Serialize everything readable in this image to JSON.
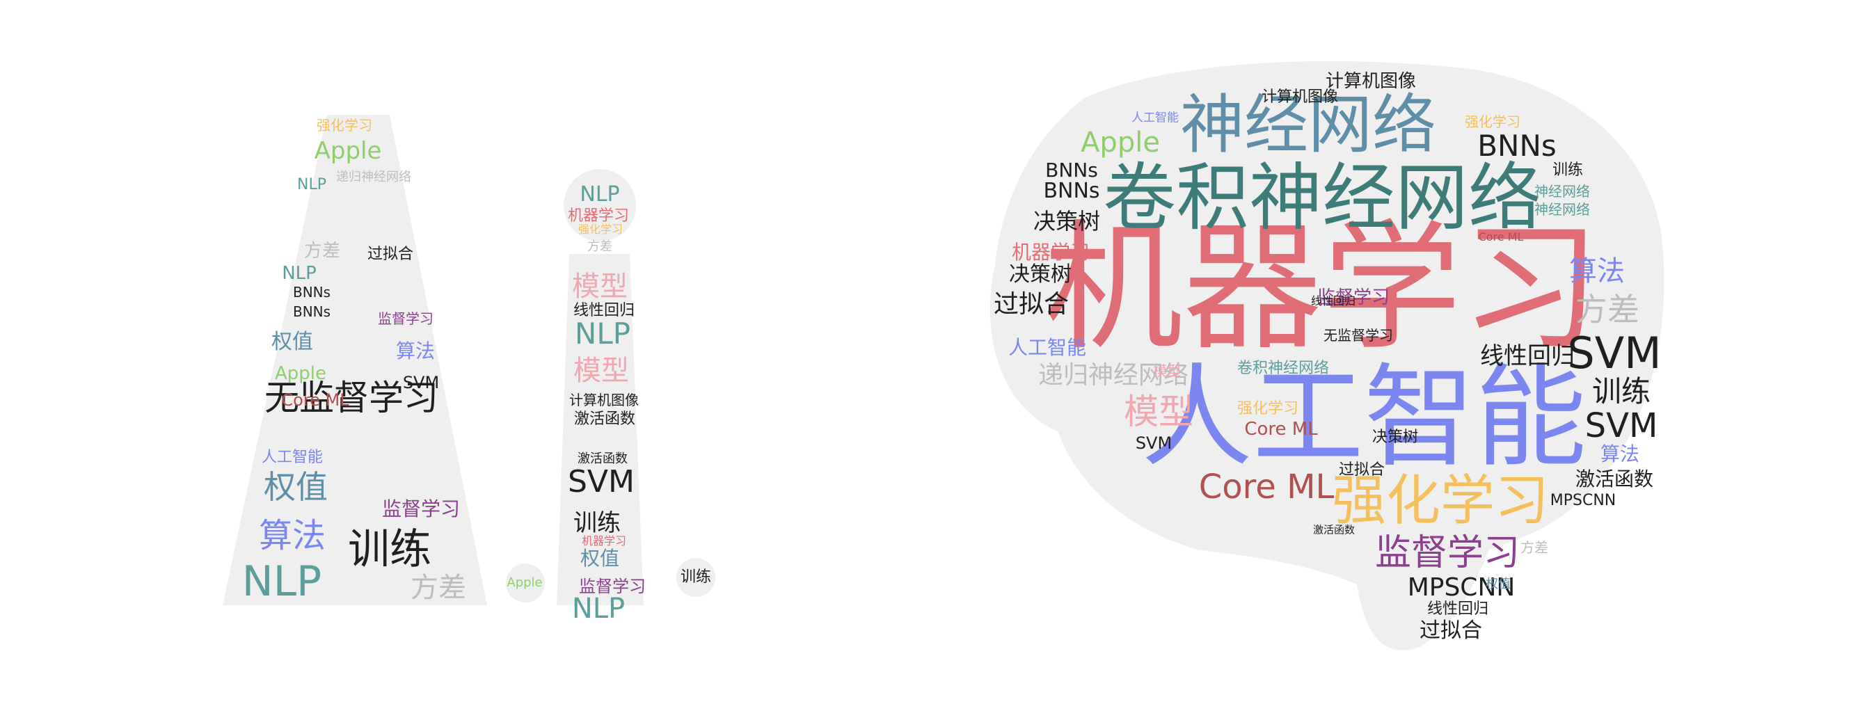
{
  "palette": {
    "red": "#e06c75",
    "teal": "#5b9e9a",
    "blue": "#7b86f0",
    "darkteal": "#3d7c78",
    "orange": "#f5bf5c",
    "purple": "#8b3f8e",
    "dark": "#1f1f1f",
    "gray": "#bdbdbd",
    "green": "#8fcf6b",
    "pink": "#f0a7b0",
    "maroon": "#b05050",
    "slate": "#5f8fa8",
    "shape_fill": "#efefef"
  },
  "words": [
    {
      "t": "机器学习",
      "c": "red"
    },
    {
      "t": "人工智能",
      "c": "blue"
    },
    {
      "t": "卷积神经网络",
      "c": "darkteal"
    },
    {
      "t": "神经网络",
      "c": "slate"
    },
    {
      "t": "强化学习",
      "c": "orange"
    },
    {
      "t": "监督学习",
      "c": "purple"
    },
    {
      "t": "Core ML",
      "c": "maroon"
    },
    {
      "t": "SVM",
      "c": "dark"
    },
    {
      "t": "SVM",
      "c": "dark"
    },
    {
      "t": "训练",
      "c": "dark"
    },
    {
      "t": "MPSCNN",
      "c": "dark"
    },
    {
      "t": "激活函数",
      "c": "dark"
    },
    {
      "t": "BNNs",
      "c": "dark"
    },
    {
      "t": "BNNs",
      "c": "dark"
    },
    {
      "t": "BNNs",
      "c": "dark"
    },
    {
      "t": "Apple",
      "c": "green"
    },
    {
      "t": "决策树",
      "c": "dark"
    },
    {
      "t": "决策树",
      "c": "dark"
    },
    {
      "t": "过拟合",
      "c": "dark"
    },
    {
      "t": "过拟合",
      "c": "dark"
    },
    {
      "t": "线性回归",
      "c": "dark"
    },
    {
      "t": "线性回归",
      "c": "dark"
    },
    {
      "t": "算法",
      "c": "blue"
    },
    {
      "t": "算法",
      "c": "blue"
    },
    {
      "t": "方差",
      "c": "gray"
    },
    {
      "t": "方差",
      "c": "gray"
    },
    {
      "t": "机器学习",
      "c": "red"
    },
    {
      "t": "人工智能",
      "c": "blue"
    },
    {
      "t": "递归神经网络",
      "c": "gray"
    },
    {
      "t": "模型",
      "c": "pink"
    },
    {
      "t": "模型",
      "c": "pink"
    },
    {
      "t": "计算机图像",
      "c": "dark"
    },
    {
      "t": "计算机图像",
      "c": "dark"
    },
    {
      "t": "卷积神经网络",
      "c": "teal"
    },
    {
      "t": "神经网络",
      "c": "teal"
    },
    {
      "t": "神经网络",
      "c": "teal"
    },
    {
      "t": "强化学习",
      "c": "orange"
    },
    {
      "t": "强化学习",
      "c": "orange"
    },
    {
      "t": "Core ML",
      "c": "maroon"
    },
    {
      "t": "Core ML",
      "c": "maroon"
    },
    {
      "t": "无监督学习",
      "c": "dark"
    },
    {
      "t": "监督学习",
      "c": "purple"
    },
    {
      "t": "过拟合",
      "c": "dark"
    },
    {
      "t": "线性回归",
      "c": "dark"
    },
    {
      "t": "MPSCNN",
      "c": "dark"
    },
    {
      "t": "权值",
      "c": "slate"
    },
    {
      "t": "SVM",
      "c": "dark"
    },
    {
      "t": "训练",
      "c": "dark"
    },
    {
      "t": "激活函数",
      "c": "dark"
    },
    {
      "t": "决策树",
      "c": "dark"
    },
    {
      "t": "人工智能",
      "c": "blue"
    },
    {
      "t": "无监督学习",
      "c": "dark"
    },
    {
      "t": "权值",
      "c": "slate"
    },
    {
      "t": "权值",
      "c": "slate"
    },
    {
      "t": "算法",
      "c": "blue"
    },
    {
      "t": "NLP",
      "c": "teal"
    },
    {
      "t": "NLP",
      "c": "teal"
    },
    {
      "t": "NLP",
      "c": "teal"
    },
    {
      "t": "BNNs",
      "c": "dark"
    },
    {
      "t": "BNNs",
      "c": "dark"
    },
    {
      "t": "Apple",
      "c": "green"
    },
    {
      "t": "Apple",
      "c": "green"
    },
    {
      "t": "Core ML",
      "c": "maroon"
    },
    {
      "t": "方差",
      "c": "gray"
    },
    {
      "t": "方差",
      "c": "gray"
    },
    {
      "t": "过拟合",
      "c": "dark"
    },
    {
      "t": "强化学习",
      "c": "orange"
    },
    {
      "t": "递归神经网络",
      "c": "gray"
    },
    {
      "t": "训练",
      "c": "dark"
    },
    {
      "t": "监督学习",
      "c": "purple"
    },
    {
      "t": "监督学习",
      "c": "purple"
    },
    {
      "t": "人工智能",
      "c": "blue"
    },
    {
      "t": "算法",
      "c": "blue"
    },
    {
      "t": "SVM",
      "c": "dark"
    },
    {
      "t": "NLP",
      "c": "teal"
    },
    {
      "t": "NLP",
      "c": "teal"
    },
    {
      "t": "NLP",
      "c": "teal"
    },
    {
      "t": "机器学习",
      "c": "red"
    },
    {
      "t": "模型",
      "c": "pink"
    },
    {
      "t": "模型",
      "c": "pink"
    },
    {
      "t": "线性回归",
      "c": "dark"
    },
    {
      "t": "计算机图像",
      "c": "dark"
    },
    {
      "t": "激活函数",
      "c": "dark"
    },
    {
      "t": "激活函数",
      "c": "dark"
    },
    {
      "t": "SVM",
      "c": "dark"
    },
    {
      "t": "训练",
      "c": "dark"
    },
    {
      "t": "权值",
      "c": "slate"
    },
    {
      "t": "监督学习",
      "c": "purple"
    },
    {
      "t": "机器学习",
      "c": "red"
    },
    {
      "t": "强化学习",
      "c": "orange"
    },
    {
      "t": "方差",
      "c": "gray"
    },
    {
      "t": "Apple",
      "c": "green"
    },
    {
      "t": "训练",
      "c": "dark"
    }
  ]
}
